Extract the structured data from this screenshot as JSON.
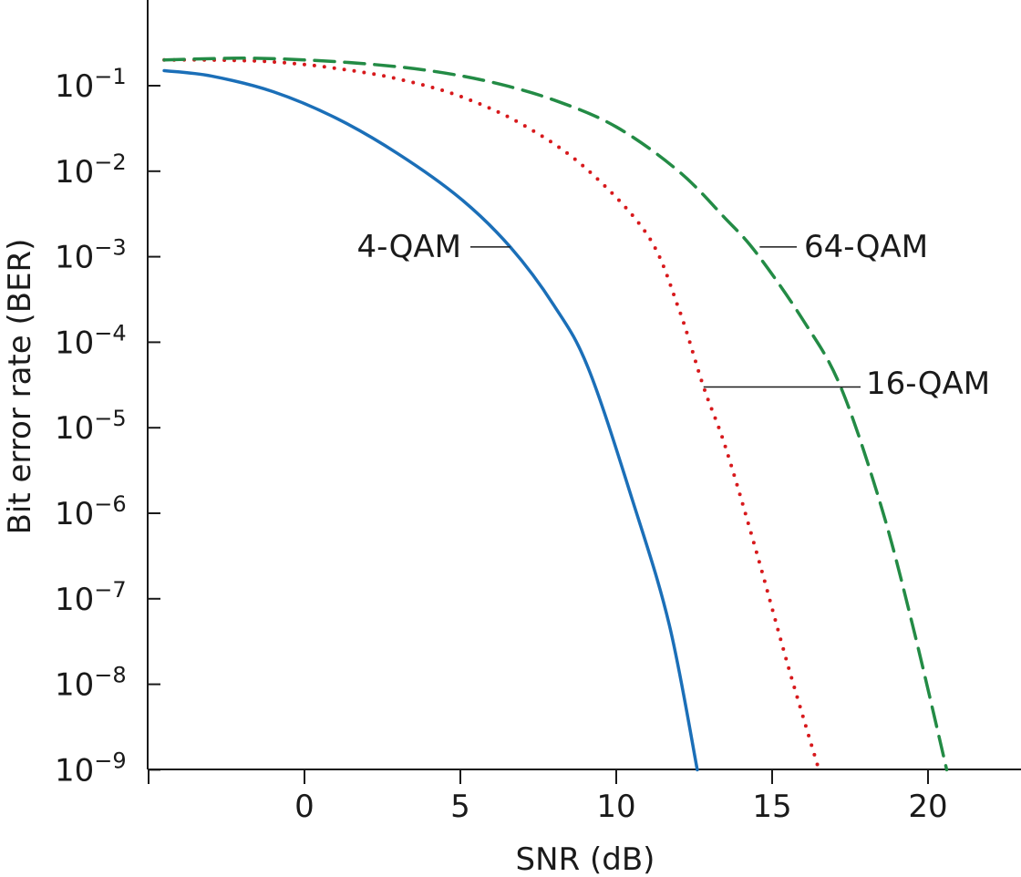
{
  "chart_data": {
    "type": "line",
    "title": "",
    "xlabel": "SNR (dB)",
    "ylabel": "Bit error rate (BER)",
    "y_scale": "log",
    "grid": false,
    "xlim": [
      -5,
      23
    ],
    "ylim": [
      1e-09,
      0.3
    ],
    "x_ticks": [
      0,
      5,
      10,
      15,
      20
    ],
    "y_tick_labels": [
      {
        "base": "10",
        "exp": "−1",
        "value": 0.1
      },
      {
        "base": "10",
        "exp": "−2",
        "value": 0.01
      },
      {
        "base": "10",
        "exp": "−3",
        "value": 0.001
      },
      {
        "base": "10",
        "exp": "−4",
        "value": 0.0001
      },
      {
        "base": "10",
        "exp": "−5",
        "value": 1e-05
      },
      {
        "base": "10",
        "exp": "−6",
        "value": 1e-06
      },
      {
        "base": "10",
        "exp": "−7",
        "value": 1e-07
      },
      {
        "base": "10",
        "exp": "−8",
        "value": 1e-08
      },
      {
        "base": "10",
        "exp": "−9",
        "value": 1e-09
      }
    ],
    "series": [
      {
        "name": "4-QAM",
        "color": "#1b6fb8",
        "style": "solid",
        "x": [
          -4.5,
          -3,
          -1,
          1,
          3,
          5,
          6.6,
          8,
          9.1,
          10.5,
          11.7,
          12.6
        ],
        "y": [
          0.15,
          0.13,
          0.085,
          0.042,
          0.016,
          0.0048,
          0.0013,
          0.00027,
          5e-05,
          1.5e-06,
          5e-08,
          1e-09
        ]
      },
      {
        "name": "16-QAM",
        "color": "#d7191c",
        "style": "dotted",
        "x": [
          -4.5,
          -3,
          -1,
          1,
          3,
          5,
          7,
          9,
          11,
          12,
          12.8,
          13.5,
          14.5,
          15.5,
          16.5
        ],
        "y": [
          0.2,
          0.2,
          0.19,
          0.16,
          0.12,
          0.075,
          0.035,
          0.011,
          0.0018,
          0.00025,
          3e-05,
          6e-06,
          3.5e-07,
          1.7e-08,
          1e-09
        ]
      },
      {
        "name": "64-QAM",
        "color": "#238b45",
        "style": "dashed",
        "x": [
          -4.5,
          -2,
          0,
          2,
          4,
          6,
          8,
          10,
          12,
          13.5,
          14.5,
          16,
          17.2,
          18.5,
          19.5,
          20.6
        ],
        "y": [
          0.2,
          0.21,
          0.2,
          0.18,
          0.15,
          0.11,
          0.068,
          0.033,
          0.01,
          0.0028,
          0.0011,
          0.00018,
          3e-05,
          1.2e-06,
          5e-08,
          1e-09
        ]
      }
    ],
    "annotations": [
      {
        "text": "4-QAM",
        "series": "4-QAM",
        "at_x": 6.6,
        "at_y": 0.0013
      },
      {
        "text": "16-QAM",
        "series": "16-QAM",
        "at_x": 12.8,
        "at_y": 3e-05
      },
      {
        "text": "64-QAM",
        "series": "64-QAM",
        "at_x": 14.6,
        "at_y": 0.0013
      }
    ]
  }
}
